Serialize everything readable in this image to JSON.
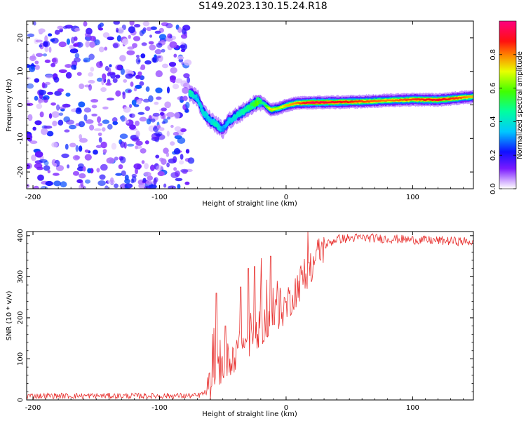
{
  "figure_title": "S149.2023.130.15.24.R18",
  "colors": {
    "snr_line": "#e8312f",
    "axis": "#000000",
    "background": "#ffffff"
  },
  "chart_data": [
    {
      "type": "heatmap",
      "title": "",
      "xlabel": "Height of straight line (km)",
      "ylabel": "Frequency (Hz)",
      "xlim": [
        -205,
        148
      ],
      "ylim": [
        -25,
        25
      ],
      "xticks": [
        -200,
        -100,
        0,
        100
      ],
      "xtick_labels": [
        "-200",
        "-100",
        "0",
        "100"
      ],
      "yticks": [
        -20,
        -10,
        0,
        10,
        20
      ],
      "ytick_labels": [
        "-20",
        "-10",
        "0",
        "10",
        "20"
      ],
      "colorbar": {
        "label": "Normalized spectral amplitude",
        "range": [
          0.0,
          1.0
        ],
        "ticks": [
          0.0,
          0.2,
          0.4,
          0.6,
          0.8
        ],
        "tick_labels": [
          "0.0",
          "0.2",
          "0.4",
          "0.6",
          "0.8"
        ],
        "colormap": "gist_rainbow_r (purple-blue-cyan-green-yellow-red-magenta)"
      },
      "noise_region": {
        "x_range": [
          -205,
          -75
        ],
        "freq_range": [
          -25,
          25
        ],
        "amplitude_range": [
          0.0,
          0.15
        ]
      },
      "signal_ridge": [
        {
          "x": -76,
          "freq": 3.5,
          "amp": 0.45
        },
        {
          "x": -70,
          "freq": 2.0,
          "amp": 0.35
        },
        {
          "x": -65,
          "freq": -2.5,
          "amp": 0.4
        },
        {
          "x": -60,
          "freq": -4.5,
          "amp": 0.35
        },
        {
          "x": -55,
          "freq": -6.0,
          "amp": 0.45
        },
        {
          "x": -50,
          "freq": -7.5,
          "amp": 0.3
        },
        {
          "x": -46,
          "freq": -5.0,
          "amp": 0.35
        },
        {
          "x": -40,
          "freq": -3.5,
          "amp": 0.4
        },
        {
          "x": -34,
          "freq": -2.0,
          "amp": 0.45
        },
        {
          "x": -28,
          "freq": -0.5,
          "amp": 0.5
        },
        {
          "x": -22,
          "freq": 1.0,
          "amp": 0.6
        },
        {
          "x": -18,
          "freq": 0.5,
          "amp": 0.45
        },
        {
          "x": -12,
          "freq": -1.5,
          "amp": 0.75
        },
        {
          "x": -6,
          "freq": -1.0,
          "amp": 0.65
        },
        {
          "x": 0,
          "freq": -0.2,
          "amp": 0.75
        },
        {
          "x": 8,
          "freq": 0.5,
          "amp": 0.8
        },
        {
          "x": 20,
          "freq": 0.7,
          "amp": 0.95
        },
        {
          "x": 40,
          "freq": 0.8,
          "amp": 0.9
        },
        {
          "x": 60,
          "freq": 1.0,
          "amp": 0.85
        },
        {
          "x": 80,
          "freq": 1.3,
          "amp": 0.8
        },
        {
          "x": 100,
          "freq": 1.6,
          "amp": 0.85
        },
        {
          "x": 120,
          "freq": 1.5,
          "amp": 0.9
        },
        {
          "x": 135,
          "freq": 2.0,
          "amp": 0.85
        },
        {
          "x": 148,
          "freq": 2.5,
          "amp": 0.75
        }
      ]
    },
    {
      "type": "line",
      "title": "",
      "xlabel": "Height of straight line (km)",
      "ylabel": "SNR (10 * v/v)",
      "xlim": [
        -205,
        148
      ],
      "ylim": [
        0,
        410
      ],
      "xticks": [
        -200,
        -100,
        0,
        100
      ],
      "xtick_labels": [
        "-200",
        "-100",
        "0",
        "100"
      ],
      "yticks": [
        0,
        100,
        200,
        300,
        400
      ],
      "ytick_labels": [
        "0",
        "100",
        "200",
        "300",
        "400"
      ],
      "series": [
        {
          "name": "SNR",
          "trend": [
            {
              "x": -205,
              "y": 10
            },
            {
              "x": -100,
              "y": 10
            },
            {
              "x": -70,
              "y": 10
            },
            {
              "x": -62,
              "y": 20
            },
            {
              "x": -55,
              "y": 70
            },
            {
              "x": -45,
              "y": 100
            },
            {
              "x": -35,
              "y": 130
            },
            {
              "x": -25,
              "y": 160
            },
            {
              "x": -15,
              "y": 190
            },
            {
              "x": -5,
              "y": 215
            },
            {
              "x": 0,
              "y": 230
            },
            {
              "x": 10,
              "y": 280
            },
            {
              "x": 20,
              "y": 330
            },
            {
              "x": 30,
              "y": 375
            },
            {
              "x": 40,
              "y": 392
            },
            {
              "x": 60,
              "y": 395
            },
            {
              "x": 100,
              "y": 390
            },
            {
              "x": 148,
              "y": 385
            }
          ],
          "spikes": [
            {
              "x": -55,
              "y": 260
            },
            {
              "x": -48,
              "y": 180
            },
            {
              "x": -36,
              "y": 275
            },
            {
              "x": -30,
              "y": 320
            },
            {
              "x": -25,
              "y": 325
            },
            {
              "x": -20,
              "y": 345
            },
            {
              "x": -12,
              "y": 350
            },
            {
              "x": -7,
              "y": 290
            }
          ]
        }
      ]
    }
  ]
}
